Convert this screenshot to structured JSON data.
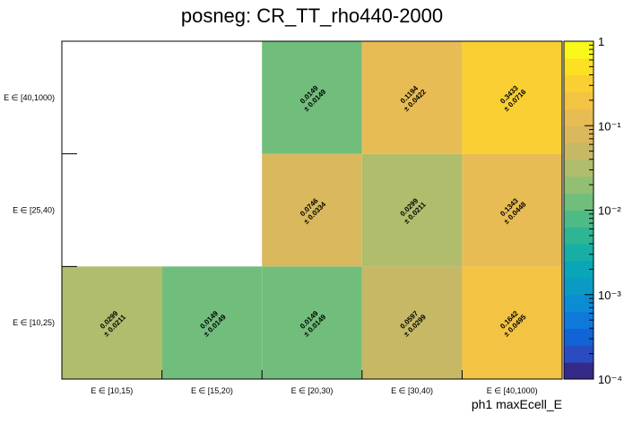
{
  "chart_data": {
    "type": "heatmap",
    "title": "posneg: CR_TT_rho440-2000",
    "xlabel": "ph1 maxEcell_E",
    "ylabel": "",
    "x_categories": [
      "E ∈ [10,15)",
      "E ∈ [15,20)",
      "E ∈ [20,30)",
      "E ∈ [30,40)",
      "E ∈ [40,1000)"
    ],
    "y_categories": [
      "E ∈ [10,25)",
      "E ∈ [25,40)",
      "E ∈ [40,1000)"
    ],
    "cells": [
      {
        "x": 0,
        "y": 0,
        "value": 0.0299,
        "error": 0.0211,
        "label": "0.0299",
        "err_label": "± 0.0211"
      },
      {
        "x": 1,
        "y": 0,
        "value": 0.0149,
        "error": 0.0149,
        "label": "0.0149",
        "err_label": "± 0.0149"
      },
      {
        "x": 2,
        "y": 0,
        "value": 0.0149,
        "error": 0.0149,
        "label": "0.0149",
        "err_label": "± 0.0149"
      },
      {
        "x": 3,
        "y": 0,
        "value": 0.0597,
        "error": 0.0299,
        "label": "0.0597",
        "err_label": "± 0.0299"
      },
      {
        "x": 4,
        "y": 0,
        "value": 0.1642,
        "error": 0.0495,
        "label": "0.1642",
        "err_label": "± 0.0495"
      },
      {
        "x": 2,
        "y": 1,
        "value": 0.0746,
        "error": 0.0334,
        "label": "0.0746",
        "err_label": "± 0.0334"
      },
      {
        "x": 3,
        "y": 1,
        "value": 0.0299,
        "error": 0.0211,
        "label": "0.0299",
        "err_label": "± 0.0211"
      },
      {
        "x": 4,
        "y": 1,
        "value": 0.1343,
        "error": 0.0448,
        "label": "0.1343",
        "err_label": "± 0.0448"
      },
      {
        "x": 2,
        "y": 2,
        "value": 0.0149,
        "error": 0.0149,
        "label": "0.0149",
        "err_label": "± 0.0149"
      },
      {
        "x": 3,
        "y": 2,
        "value": 0.1194,
        "error": 0.0422,
        "label": "0.1194",
        "err_label": "± 0.0422"
      },
      {
        "x": 4,
        "y": 2,
        "value": 0.3433,
        "error": 0.0716,
        "label": "0.3433",
        "err_label": "± 0.0716"
      }
    ],
    "colorbar": {
      "scale": "log",
      "range": [
        0.0001,
        1
      ],
      "ticks": [
        {
          "value": 1,
          "label": "1"
        },
        {
          "value": 0.1,
          "label": "10⁻¹"
        },
        {
          "value": 0.01,
          "label": "10⁻²"
        },
        {
          "value": 0.001,
          "label": "10⁻³"
        },
        {
          "value": 0.0001,
          "label": "10⁻⁴"
        }
      ],
      "levels": 20
    },
    "palette": [
      "#352a87",
      "#2b4cc0",
      "#1163d6",
      "#0f79da",
      "#0c8cd2",
      "#0b9ac4",
      "#08a6b6",
      "#17afa5",
      "#2db594",
      "#4ebb87",
      "#71bd7c",
      "#93bf73",
      "#b0bd6c",
      "#c7b865",
      "#d9b85e",
      "#e8bc54",
      "#f3c343",
      "#f9cf33",
      "#fbe024",
      "#f9f81a"
    ],
    "grid": false,
    "legend": "none"
  }
}
